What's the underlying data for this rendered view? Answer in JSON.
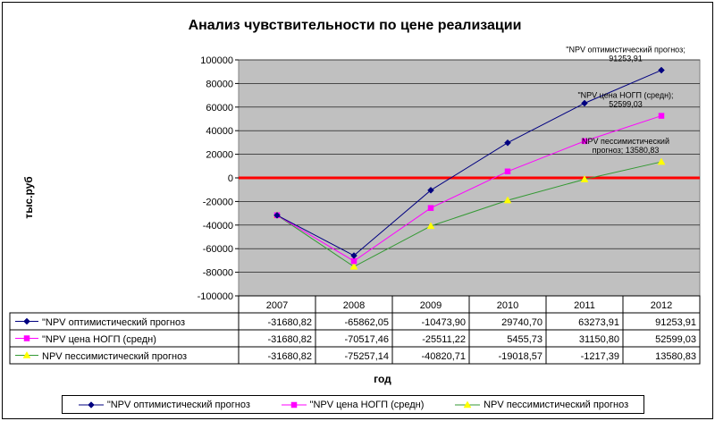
{
  "chart_data": {
    "type": "line",
    "title": "Анализ чувствительности по цене реализации",
    "xlabel": "год",
    "ylabel": "тыс.руб",
    "ylim": [
      -100000,
      100000
    ],
    "ytick_step": 20000,
    "ytick_labels": [
      "100000",
      "80000",
      "60000",
      "40000",
      "20000",
      "0",
      "-20000",
      "-40000",
      "-60000",
      "-80000",
      "-100000"
    ],
    "grid": true,
    "plot_background": "#c0c0c0",
    "zero_line_color": "#ff0000",
    "legend_position": "bottom",
    "categories": [
      "2007",
      "2008",
      "2009",
      "2010",
      "2011",
      "2012"
    ],
    "series": [
      {
        "name": "\"NPV оптимистический прогноз",
        "color": "#000080",
        "marker": "diamond",
        "values": [
          -31680.82,
          -65862.05,
          -10473.9,
          29740.7,
          63273.91,
          91253.91
        ],
        "table_values": [
          "-31680,82",
          "-65862,05",
          "-10473,90",
          "29740,70",
          "63273,91",
          "91253,91"
        ]
      },
      {
        "name": "\"NPV цена НОГП (средн)",
        "color": "#ff00ff",
        "marker": "square",
        "values": [
          -31680.82,
          -70517.46,
          -25511.22,
          5455.73,
          31150.8,
          52599.03
        ],
        "table_values": [
          "-31680,82",
          "-70517,46",
          "-25511,22",
          "5455,73",
          "31150,80",
          "52599,03"
        ]
      },
      {
        "name": "NPV пессимистический прогноз",
        "color": "#339933",
        "marker_color": "#ffff00",
        "marker": "triangle",
        "values": [
          -31680.82,
          -75257.14,
          -40820.71,
          -19018.57,
          -1217.39,
          13580.83
        ],
        "table_values": [
          "-31680,82",
          "-75257,14",
          "-40820,71",
          "-19018,57",
          "-1217,39",
          "13580,83"
        ]
      }
    ],
    "annotations": [
      {
        "series": 0,
        "lines": [
          "\"NPV оптимистический прогноз;",
          "91253,91"
        ]
      },
      {
        "series": 1,
        "lines": [
          "\"NPV цена НОГП (средн);",
          "52599,03"
        ]
      },
      {
        "series": 2,
        "lines": [
          "NPV пессимистический",
          "прогноз; 13580,83"
        ]
      }
    ]
  }
}
